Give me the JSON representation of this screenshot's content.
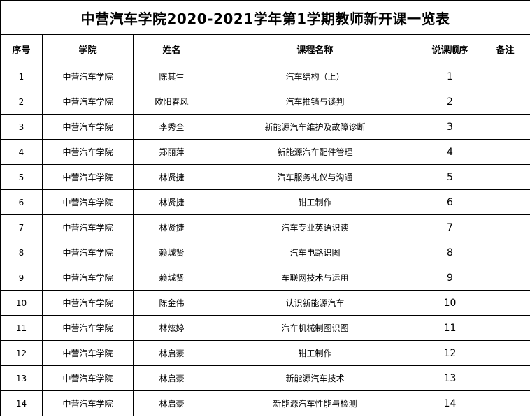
{
  "title": "中营汽车学院2020-2021学年第1学期教师新开课一览表",
  "headers": [
    "序号",
    "学院",
    "姓名",
    "课程名称",
    "说课顺序",
    "备注"
  ],
  "rows": [
    {
      "no": "1",
      "college": "中营汽车学院",
      "name": "陈其生",
      "course": "汽车结构（上）",
      "order": "1",
      "note": ""
    },
    {
      "no": "2",
      "college": "中营汽车学院",
      "name": "欧阳春风",
      "course": "汽车推销与谈判",
      "order": "2",
      "note": ""
    },
    {
      "no": "3",
      "college": "中营汽车学院",
      "name": "李秀全",
      "course": "新能源汽车维护及故障诊断",
      "order": "3",
      "note": ""
    },
    {
      "no": "4",
      "college": "中营汽车学院",
      "name": "郑丽萍",
      "course": "新能源汽车配件管理",
      "order": "4",
      "note": ""
    },
    {
      "no": "5",
      "college": "中营汽车学院",
      "name": "林贤捷",
      "course": "汽车服务礼仪与沟通",
      "order": "5",
      "note": ""
    },
    {
      "no": "6",
      "college": "中营汽车学院",
      "name": "林贤捷",
      "course": "钳工制作",
      "order": "6",
      "note": ""
    },
    {
      "no": "7",
      "college": "中营汽车学院",
      "name": "林贤捷",
      "course": "汽车专业英语识读",
      "order": "7",
      "note": ""
    },
    {
      "no": "8",
      "college": "中营汽车学院",
      "name": "赖城贤",
      "course": "汽车电路识图",
      "order": "8",
      "note": ""
    },
    {
      "no": "9",
      "college": "中营汽车学院",
      "name": "赖城贤",
      "course": "车联网技术与运用",
      "order": "9",
      "note": ""
    },
    {
      "no": "10",
      "college": "中营汽车学院",
      "name": "陈金伟",
      "course": "认识新能源汽车",
      "order": "10",
      "note": ""
    },
    {
      "no": "11",
      "college": "中营汽车学院",
      "name": "林炫婷",
      "course": "汽车机械制图识图",
      "order": "11",
      "note": ""
    },
    {
      "no": "12",
      "college": "中营汽车学院",
      "name": "林启豪",
      "course": "钳工制作",
      "order": "12",
      "note": ""
    },
    {
      "no": "13",
      "college": "中营汽车学院",
      "name": "林启豪",
      "course": "新能源汽车技术",
      "order": "13",
      "note": ""
    },
    {
      "no": "14",
      "college": "中营汽车学院",
      "name": "林启豪",
      "course": "新能源汽车性能与检测",
      "order": "14",
      "note": ""
    }
  ]
}
